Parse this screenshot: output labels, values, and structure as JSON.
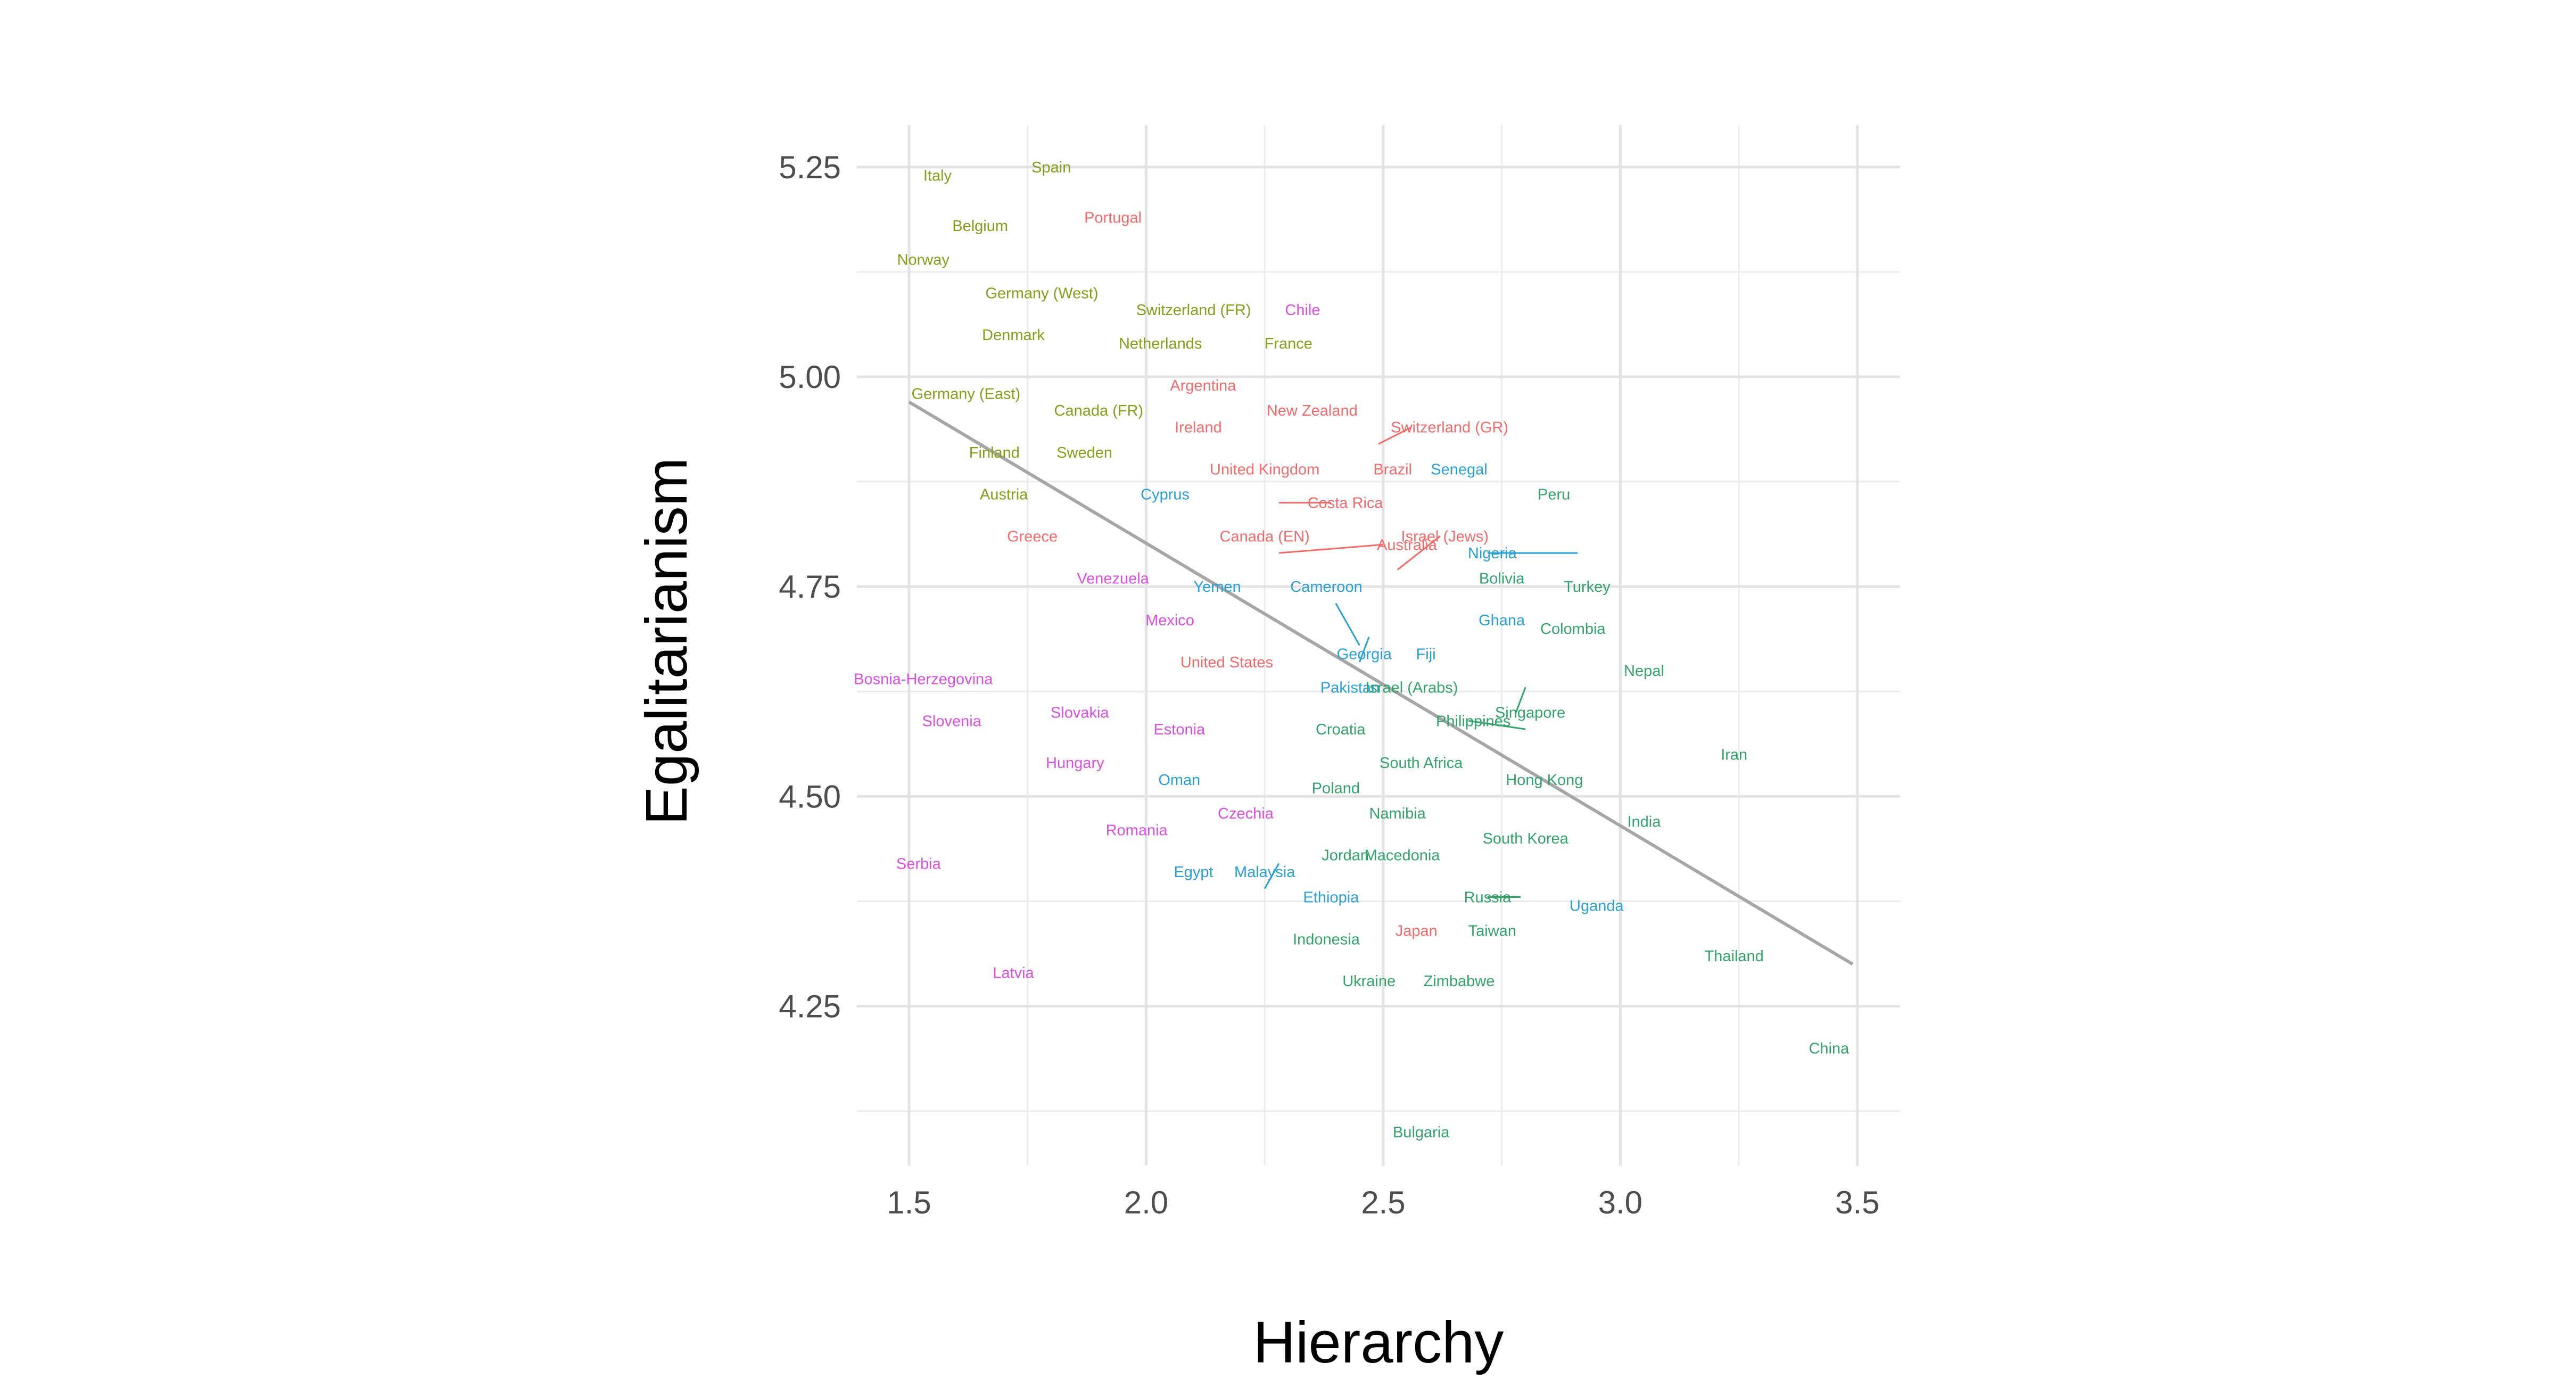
{
  "chart_data": {
    "type": "scatter",
    "title": "",
    "xlabel": "Hierarchy",
    "ylabel": "Egalitarianism",
    "xlim": [
      1.39,
      3.59
    ],
    "ylim": [
      4.06,
      5.3
    ],
    "x_ticks": [
      "1.5",
      "2.0",
      "2.5",
      "3.0",
      "3.5"
    ],
    "y_ticks": [
      "4.25",
      "4.50",
      "4.75",
      "5.00",
      "5.25"
    ],
    "grid": true,
    "legend": "none",
    "group_colors": {
      "a": "#8a9a1b",
      "b": "#f26b6b",
      "c": "#33a36b",
      "d": "#2a9fd6",
      "e": "#d94fe0"
    },
    "trend_line": {
      "x": [
        1.5,
        3.49
      ],
      "y": [
        4.97,
        4.3
      ],
      "color": "#a6a6a6"
    },
    "points": [
      {
        "label": "Italy",
        "x": 1.56,
        "y": 5.24,
        "group": "a"
      },
      {
        "label": "Spain",
        "x": 1.8,
        "y": 5.25,
        "group": "a"
      },
      {
        "label": "Belgium",
        "x": 1.65,
        "y": 5.18,
        "group": "a"
      },
      {
        "label": "Portugal",
        "x": 1.93,
        "y": 5.19,
        "group": "b"
      },
      {
        "label": "Norway",
        "x": 1.53,
        "y": 5.14,
        "group": "a"
      },
      {
        "label": "Germany (West)",
        "x": 1.78,
        "y": 5.1,
        "group": "a"
      },
      {
        "label": "Switzerland (FR)",
        "x": 2.1,
        "y": 5.08,
        "group": "a"
      },
      {
        "label": "Chile",
        "x": 2.33,
        "y": 5.08,
        "group": "e"
      },
      {
        "label": "Denmark",
        "x": 1.72,
        "y": 5.05,
        "group": "a"
      },
      {
        "label": "Netherlands",
        "x": 2.03,
        "y": 5.04,
        "group": "a"
      },
      {
        "label": "France",
        "x": 2.3,
        "y": 5.04,
        "group": "a"
      },
      {
        "label": "Argentina",
        "x": 2.12,
        "y": 4.99,
        "group": "b"
      },
      {
        "label": "Germany (East)",
        "x": 1.62,
        "y": 4.98,
        "group": "a"
      },
      {
        "label": "New Zealand",
        "x": 2.35,
        "y": 4.96,
        "group": "b"
      },
      {
        "label": "Canada (FR)",
        "x": 1.9,
        "y": 4.96,
        "group": "a"
      },
      {
        "label": "Switzerland (GR)",
        "x": 2.64,
        "y": 4.94,
        "group": "b"
      },
      {
        "label": "Ireland",
        "x": 2.11,
        "y": 4.94,
        "group": "b"
      },
      {
        "label": "Finland",
        "x": 1.68,
        "y": 4.91,
        "group": "a"
      },
      {
        "label": "Sweden",
        "x": 1.87,
        "y": 4.91,
        "group": "a"
      },
      {
        "label": "Brazil",
        "x": 2.52,
        "y": 4.89,
        "group": "b"
      },
      {
        "label": "Senegal",
        "x": 2.66,
        "y": 4.89,
        "group": "d"
      },
      {
        "label": "United Kingdom",
        "x": 2.25,
        "y": 4.89,
        "group": "b"
      },
      {
        "label": "Peru",
        "x": 2.86,
        "y": 4.86,
        "group": "c"
      },
      {
        "label": "Austria",
        "x": 1.7,
        "y": 4.86,
        "group": "a"
      },
      {
        "label": "Cyprus",
        "x": 2.04,
        "y": 4.86,
        "group": "d"
      },
      {
        "label": "Costa Rica",
        "x": 2.42,
        "y": 4.85,
        "group": "b"
      },
      {
        "label": "Greece",
        "x": 1.76,
        "y": 4.81,
        "group": "b"
      },
      {
        "label": "Canada (EN)",
        "x": 2.25,
        "y": 4.81,
        "group": "b"
      },
      {
        "label": "Israel (Jews)",
        "x": 2.63,
        "y": 4.81,
        "group": "b"
      },
      {
        "label": "Australia",
        "x": 2.55,
        "y": 4.8,
        "group": "b"
      },
      {
        "label": "Nigeria",
        "x": 2.73,
        "y": 4.79,
        "group": "d"
      },
      {
        "label": "Venezuela",
        "x": 1.93,
        "y": 4.76,
        "group": "e"
      },
      {
        "label": "Yemen",
        "x": 2.15,
        "y": 4.75,
        "group": "d"
      },
      {
        "label": "Cameroon",
        "x": 2.38,
        "y": 4.75,
        "group": "d"
      },
      {
        "label": "Bolivia",
        "x": 2.75,
        "y": 4.76,
        "group": "c"
      },
      {
        "label": "Turkey",
        "x": 2.93,
        "y": 4.75,
        "group": "c"
      },
      {
        "label": "Mexico",
        "x": 2.05,
        "y": 4.71,
        "group": "e"
      },
      {
        "label": "Georgia",
        "x": 2.46,
        "y": 4.67,
        "group": "d"
      },
      {
        "label": "Ghana",
        "x": 2.75,
        "y": 4.71,
        "group": "d"
      },
      {
        "label": "Colombia",
        "x": 2.9,
        "y": 4.7,
        "group": "c"
      },
      {
        "label": "Fiji",
        "x": 2.59,
        "y": 4.67,
        "group": "d"
      },
      {
        "label": "United States",
        "x": 2.17,
        "y": 4.66,
        "group": "b"
      },
      {
        "label": "Nepal",
        "x": 3.05,
        "y": 4.65,
        "group": "c"
      },
      {
        "label": "Bosnia-Herzegovina",
        "x": 1.53,
        "y": 4.64,
        "group": "e"
      },
      {
        "label": "Singapore",
        "x": 2.81,
        "y": 4.6,
        "group": "c"
      },
      {
        "label": "Pakistan",
        "x": 2.43,
        "y": 4.63,
        "group": "d"
      },
      {
        "label": "Israel (Arabs)",
        "x": 2.56,
        "y": 4.63,
        "group": "c"
      },
      {
        "label": "Slovakia",
        "x": 1.86,
        "y": 4.6,
        "group": "e"
      },
      {
        "label": "Philippines",
        "x": 2.69,
        "y": 4.59,
        "group": "c"
      },
      {
        "label": "Slovenia",
        "x": 1.59,
        "y": 4.59,
        "group": "e"
      },
      {
        "label": "Estonia",
        "x": 2.07,
        "y": 4.58,
        "group": "e"
      },
      {
        "label": "Croatia",
        "x": 2.41,
        "y": 4.58,
        "group": "c"
      },
      {
        "label": "Iran",
        "x": 3.24,
        "y": 4.55,
        "group": "c"
      },
      {
        "label": "South Africa",
        "x": 2.58,
        "y": 4.54,
        "group": "c"
      },
      {
        "label": "Hungary",
        "x": 1.85,
        "y": 4.54,
        "group": "e"
      },
      {
        "label": "Hong Kong",
        "x": 2.84,
        "y": 4.52,
        "group": "c"
      },
      {
        "label": "Oman",
        "x": 2.07,
        "y": 4.52,
        "group": "d"
      },
      {
        "label": "Poland",
        "x": 2.4,
        "y": 4.51,
        "group": "c"
      },
      {
        "label": "Namibia",
        "x": 2.53,
        "y": 4.48,
        "group": "c"
      },
      {
        "label": "Czechia",
        "x": 2.21,
        "y": 4.48,
        "group": "e"
      },
      {
        "label": "India",
        "x": 3.05,
        "y": 4.47,
        "group": "c"
      },
      {
        "label": "Romania",
        "x": 1.98,
        "y": 4.46,
        "group": "e"
      },
      {
        "label": "South Korea",
        "x": 2.8,
        "y": 4.45,
        "group": "c"
      },
      {
        "label": "Macedonia",
        "x": 2.54,
        "y": 4.43,
        "group": "c"
      },
      {
        "label": "Jordan",
        "x": 2.42,
        "y": 4.43,
        "group": "c"
      },
      {
        "label": "Serbia",
        "x": 1.52,
        "y": 4.42,
        "group": "e"
      },
      {
        "label": "Egypt",
        "x": 2.1,
        "y": 4.41,
        "group": "d"
      },
      {
        "label": "Malaysia",
        "x": 2.25,
        "y": 4.41,
        "group": "d"
      },
      {
        "label": "Russia",
        "x": 2.72,
        "y": 4.38,
        "group": "c"
      },
      {
        "label": "Ethiopia",
        "x": 2.39,
        "y": 4.38,
        "group": "d"
      },
      {
        "label": "Uganda",
        "x": 2.95,
        "y": 4.37,
        "group": "d"
      },
      {
        "label": "Japan",
        "x": 2.57,
        "y": 4.34,
        "group": "b"
      },
      {
        "label": "Taiwan",
        "x": 2.73,
        "y": 4.34,
        "group": "c"
      },
      {
        "label": "Indonesia",
        "x": 2.38,
        "y": 4.33,
        "group": "c"
      },
      {
        "label": "Thailand",
        "x": 3.24,
        "y": 4.31,
        "group": "c"
      },
      {
        "label": "Latvia",
        "x": 1.72,
        "y": 4.29,
        "group": "e"
      },
      {
        "label": "Ukraine",
        "x": 2.47,
        "y": 4.28,
        "group": "c"
      },
      {
        "label": "Zimbabwe",
        "x": 2.66,
        "y": 4.28,
        "group": "c"
      },
      {
        "label": "China",
        "x": 3.44,
        "y": 4.2,
        "group": "c"
      },
      {
        "label": "Bulgaria",
        "x": 2.58,
        "y": 4.1,
        "group": "c"
      }
    ],
    "connectors": [
      {
        "from": [
          2.49,
          4.92
        ],
        "to": [
          2.56,
          4.94
        ],
        "group": "b"
      },
      {
        "from": [
          2.28,
          4.85
        ],
        "to": [
          2.39,
          4.85
        ],
        "group": "b"
      },
      {
        "from": [
          2.28,
          4.79
        ],
        "to": [
          2.5,
          4.8
        ],
        "group": "b"
      },
      {
        "from": [
          2.53,
          4.77
        ],
        "to": [
          2.62,
          4.81
        ],
        "group": "b"
      },
      {
        "from": [
          2.72,
          4.79
        ],
        "to": [
          2.91,
          4.79
        ],
        "group": "d"
      },
      {
        "from": [
          2.4,
          4.73
        ],
        "to": [
          2.45,
          4.68
        ],
        "group": "d"
      },
      {
        "from": [
          2.45,
          4.66
        ],
        "to": [
          2.47,
          4.69
        ],
        "group": "d"
      },
      {
        "from": [
          2.78,
          4.6
        ],
        "to": [
          2.8,
          4.63
        ],
        "group": "c"
      },
      {
        "from": [
          2.68,
          4.59
        ],
        "to": [
          2.8,
          4.58
        ],
        "group": "c"
      },
      {
        "from": [
          2.25,
          4.39
        ],
        "to": [
          2.28,
          4.42
        ],
        "group": "d"
      },
      {
        "from": [
          2.72,
          4.38
        ],
        "to": [
          2.79,
          4.38
        ],
        "group": "c"
      }
    ]
  }
}
